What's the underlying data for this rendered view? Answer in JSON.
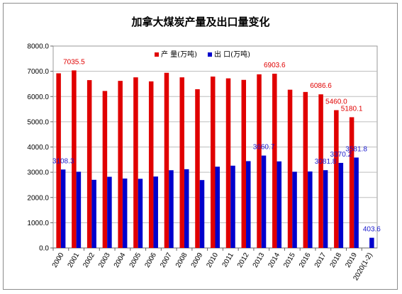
{
  "chart_data": {
    "type": "bar",
    "title": "加拿大煤炭产量及出口量变化",
    "xlabel": "",
    "ylabel": "",
    "ylim": [
      0,
      8000
    ],
    "yticks": [
      "0.0",
      "1000.0",
      "2000.0",
      "3000.0",
      "4000.0",
      "5000.0",
      "6000.0",
      "7000.0",
      "8000.0"
    ],
    "grid": true,
    "legend_position": "top-right",
    "categories": [
      "2000",
      "2001",
      "2002",
      "2003",
      "2004",
      "2005",
      "2006",
      "2007",
      "2008",
      "2009",
      "2010",
      "2011",
      "2012",
      "2013",
      "2014",
      "2015",
      "2016",
      "2017",
      "2018",
      "2019",
      "2020(1-2)"
    ],
    "series": [
      {
        "name": "产 量(万吨)",
        "color": "#e00000",
        "values": [
          6920,
          7035.5,
          6650,
          6220,
          6620,
          6760,
          6600,
          6940,
          6760,
          6290,
          6790,
          6720,
          6660,
          6880,
          6903.6,
          6270,
          6180,
          6086.6,
          5460.0,
          5180.1,
          null
        ]
      },
      {
        "name": "出 口(万吨)",
        "color": "#0000cc",
        "values": [
          3108.3,
          3020,
          2700,
          2820,
          2750,
          2740,
          2830,
          3080,
          3120,
          2690,
          3220,
          3260,
          3440,
          3660.7,
          3430,
          3020,
          3030,
          3081.8,
          3370.2,
          3581.8,
          403.6
        ]
      }
    ],
    "data_labels": [
      {
        "series": 0,
        "index": 1,
        "text": "7035.5"
      },
      {
        "series": 0,
        "index": 14,
        "text": "6903.6"
      },
      {
        "series": 0,
        "index": 17,
        "text": "6086.6"
      },
      {
        "series": 0,
        "index": 18,
        "text": "5460.0"
      },
      {
        "series": 0,
        "index": 19,
        "text": "5180.1"
      },
      {
        "series": 1,
        "index": 0,
        "text": "3108.3"
      },
      {
        "series": 1,
        "index": 13,
        "text": "3660.7"
      },
      {
        "series": 1,
        "index": 17,
        "text": "3081.8"
      },
      {
        "series": 1,
        "index": 18,
        "text": "3370.2"
      },
      {
        "series": 1,
        "index": 19,
        "text": "3581.8"
      },
      {
        "series": 1,
        "index": 20,
        "text": "403.6"
      }
    ]
  }
}
